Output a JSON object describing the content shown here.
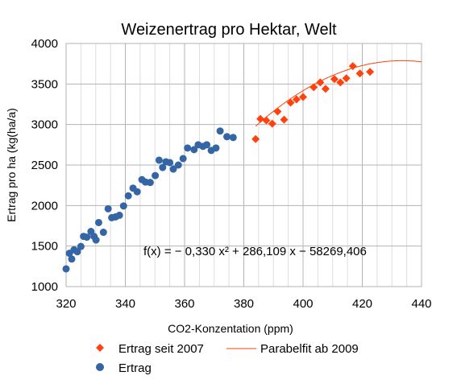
{
  "chart_data": {
    "type": "scatter",
    "title": "Weizenertrag pro Hektar, Welt",
    "xlabel": "CO2-Konzentation (ppm)",
    "ylabel": "Ertrag pro ha (kg(ha/a)",
    "xlim": [
      320,
      440
    ],
    "ylim": [
      1000,
      4000
    ],
    "x_ticks": [
      "320",
      "340",
      "360",
      "380",
      "400",
      "420",
      "440"
    ],
    "y_ticks": [
      "1000",
      "1500",
      "2000",
      "2500",
      "3000",
      "3500",
      "4000"
    ],
    "grid": "vertical and horizontal",
    "legend_position": "bottom",
    "annotation": "f(x) = − 0,330 x² + 286,109 x − 58269,406",
    "series": [
      {
        "name": "Ertrag",
        "marker": "circle",
        "color": "#3465a4",
        "points": [
          [
            320.0,
            1219
          ],
          [
            321.1,
            1411
          ],
          [
            321.9,
            1340
          ],
          [
            322.7,
            1455
          ],
          [
            323.8,
            1430
          ],
          [
            325.0,
            1495
          ],
          [
            325.9,
            1620
          ],
          [
            327.0,
            1610
          ],
          [
            328.4,
            1680
          ],
          [
            329.4,
            1620
          ],
          [
            330.1,
            1575
          ],
          [
            331.0,
            1790
          ],
          [
            332.6,
            1670
          ],
          [
            334.2,
            1960
          ],
          [
            335.4,
            1850
          ],
          [
            336.7,
            1860
          ],
          [
            338.0,
            1880
          ],
          [
            339.4,
            1995
          ],
          [
            341.0,
            2120
          ],
          [
            342.6,
            2215
          ],
          [
            344.0,
            2170
          ],
          [
            345.6,
            2320
          ],
          [
            346.8,
            2290
          ],
          [
            348.4,
            2285
          ],
          [
            350.1,
            2370
          ],
          [
            351.4,
            2560
          ],
          [
            352.6,
            2470
          ],
          [
            353.7,
            2540
          ],
          [
            355.0,
            2530
          ],
          [
            356.2,
            2450
          ],
          [
            357.9,
            2500
          ],
          [
            359.5,
            2580
          ],
          [
            361.0,
            2710
          ],
          [
            363.2,
            2690
          ],
          [
            364.6,
            2750
          ],
          [
            366.2,
            2730
          ],
          [
            367.5,
            2750
          ],
          [
            369.0,
            2680
          ],
          [
            370.6,
            2710
          ],
          [
            372.0,
            2920
          ],
          [
            374.3,
            2850
          ],
          [
            376.4,
            2840
          ]
        ]
      },
      {
        "name": "Ertrag seit 2007",
        "marker": "diamond",
        "color": "#ff420e",
        "points": [
          [
            384.0,
            2820
          ],
          [
            385.6,
            3070
          ],
          [
            387.6,
            3050
          ],
          [
            389.6,
            3010
          ],
          [
            391.4,
            3160
          ],
          [
            393.6,
            3060
          ],
          [
            395.8,
            3270
          ],
          [
            397.8,
            3310
          ],
          [
            400.0,
            3340
          ],
          [
            403.6,
            3460
          ],
          [
            405.8,
            3520
          ],
          [
            407.6,
            3440
          ],
          [
            410.6,
            3560
          ],
          [
            412.6,
            3520
          ],
          [
            414.6,
            3570
          ],
          [
            416.8,
            3720
          ],
          [
            419.2,
            3630
          ],
          [
            422.6,
            3650
          ]
        ]
      },
      {
        "name": "Parabelfit ab 2009",
        "type": "line",
        "color": "#ff420e",
        "x_range": [
          384,
          440
        ],
        "coefficients": {
          "a": -0.33,
          "b": 286.109,
          "c": -58269.406
        },
        "offset_y": 43
      }
    ]
  }
}
